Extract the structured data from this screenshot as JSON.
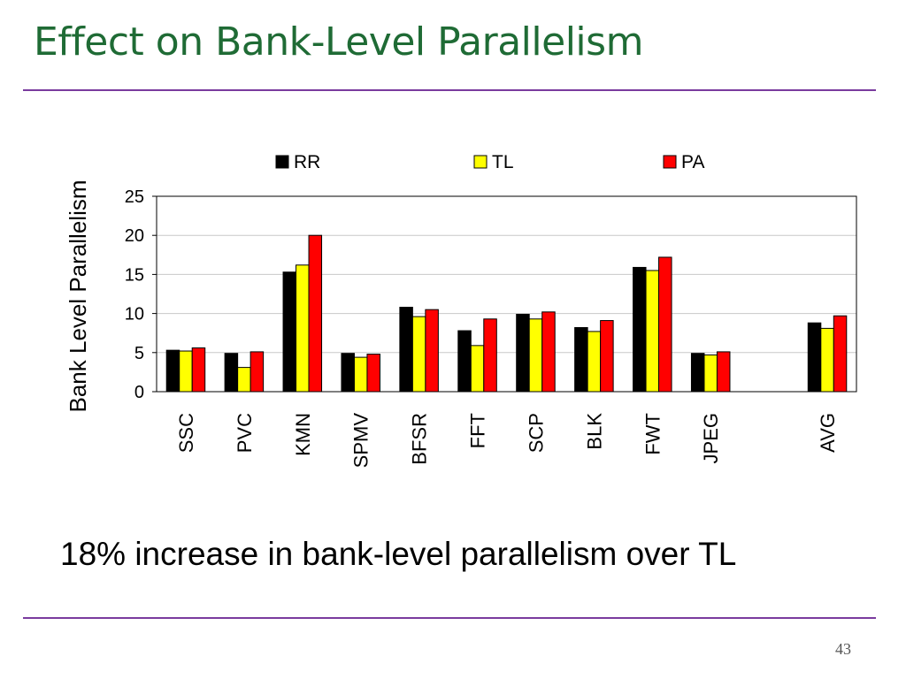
{
  "slide": {
    "title": "Effect on Bank-Level Parallelism",
    "caption": "18% increase in bank-level parallelism over TL",
    "page_number": "43",
    "title_color": "#1f6b35",
    "rule_color": "#7a3b9e"
  },
  "chart_data": {
    "type": "bar",
    "title": "",
    "xlabel": "",
    "ylabel": "Bank Level Parallelism",
    "ylim": [
      0,
      25
    ],
    "yticks": [
      0,
      5,
      10,
      15,
      20,
      25
    ],
    "grid": true,
    "legend_position": "top",
    "categories": [
      "SSC",
      "PVC",
      "KMN",
      "SPMV",
      "BFSR",
      "FFT",
      "SCP",
      "BLK",
      "FWT",
      "JPEG",
      "",
      "AVG"
    ],
    "series": [
      {
        "name": "RR",
        "color": "#000000",
        "values": [
          5.3,
          4.9,
          15.3,
          4.9,
          10.8,
          7.8,
          9.9,
          8.2,
          15.9,
          4.9,
          null,
          8.8
        ]
      },
      {
        "name": "TL",
        "color": "#ffff00",
        "values": [
          5.2,
          3.1,
          16.2,
          4.4,
          9.6,
          5.9,
          9.3,
          7.7,
          15.5,
          4.7,
          null,
          8.1
        ]
      },
      {
        "name": "PA",
        "color": "#ff0000",
        "values": [
          5.6,
          5.1,
          20.0,
          4.8,
          10.5,
          9.3,
          10.2,
          9.1,
          17.2,
          5.1,
          null,
          9.7
        ]
      }
    ]
  }
}
